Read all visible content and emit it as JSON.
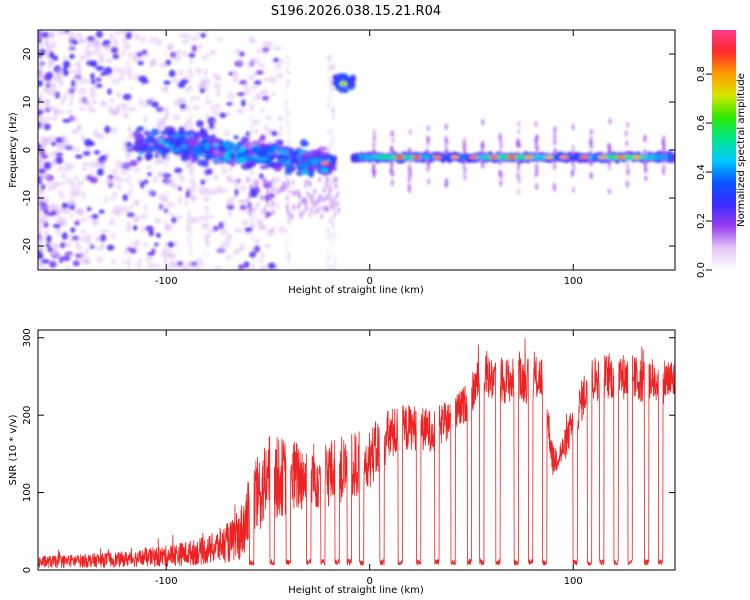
{
  "title": "S196.2026.038.15.21.R04",
  "chart_data": [
    {
      "type": "heatmap",
      "name": "spectrogram",
      "xlabel": "Height of straight line (km)",
      "ylabel": "Frequency (Hz)",
      "xlim": [
        -163,
        150
      ],
      "ylim": [
        -25,
        25
      ],
      "xticks": [
        -100,
        0,
        100
      ],
      "yticks": [
        -20,
        -10,
        0,
        10,
        20
      ],
      "xtick_labels": [
        "-100",
        "0",
        "100"
      ],
      "ytick_labels": [
        "-20",
        "-10",
        "0",
        "10",
        "20"
      ],
      "colorbar": {
        "label": "Normalized spectral amplitude",
        "range": [
          0,
          1
        ],
        "ticks": [
          0.0,
          0.2,
          0.4,
          0.6,
          0.8
        ],
        "tick_labels": [
          "0.0",
          "0.2",
          "0.4",
          "0.6",
          "0.8"
        ],
        "colormap": [
          "#ffffff",
          "#e3c6f5",
          "#9a3ff0",
          "#3a2bff",
          "#0a55ff",
          "#00c8ff",
          "#00e890",
          "#2ce800",
          "#d8e800",
          "#ff9c00",
          "#ff2a2a",
          "#ff3c90"
        ]
      },
      "features": [
        {
          "desc": "main carrier",
          "x_range": [
            -8,
            150
          ],
          "freq": -1.5,
          "intensity": 0.85
        },
        {
          "desc": "drifting carrier",
          "x_range": [
            -115,
            -18
          ],
          "freq_start": 1.5,
          "freq_end": -3,
          "intensity": 0.45
        },
        {
          "desc": "short burst",
          "x_range": [
            -17,
            -8
          ],
          "freq": 14,
          "intensity": 0.65
        }
      ]
    },
    {
      "type": "line",
      "name": "snr",
      "xlabel": "Height of straight line (km)",
      "ylabel": "SNR (10 * v/v)",
      "xlim": [
        -163,
        150
      ],
      "ylim": [
        0,
        310
      ],
      "xticks": [
        -100,
        0,
        100
      ],
      "yticks": [
        0,
        100,
        200,
        300
      ],
      "xtick_labels": [
        "-100",
        "0",
        "100"
      ],
      "ytick_labels": [
        "0",
        "100",
        "200",
        "300"
      ],
      "color": "#ee2222",
      "envelope": {
        "x": [
          -163,
          -140,
          -120,
          -100,
          -80,
          -65,
          -58,
          -50,
          -40,
          -30,
          -20,
          -10,
          0,
          10,
          20,
          30,
          40,
          47,
          55,
          65,
          78,
          85,
          90,
          95,
          100,
          108,
          115,
          125,
          135,
          150
        ],
        "base": [
          10,
          12,
          14,
          18,
          25,
          40,
          80,
          120,
          120,
          120,
          125,
          130,
          145,
          175,
          185,
          180,
          195,
          215,
          250,
          245,
          245,
          250,
          140,
          155,
          190,
          245,
          250,
          250,
          245,
          245
        ],
        "spread": [
          8,
          9,
          10,
          14,
          18,
          30,
          50,
          55,
          50,
          45,
          45,
          45,
          40,
          35,
          30,
          28,
          25,
          25,
          30,
          30,
          30,
          30,
          20,
          20,
          25,
          30,
          30,
          30,
          30,
          30
        ]
      },
      "dips_at": [
        -58,
        -48,
        -40,
        -30,
        -23,
        -16,
        -10,
        -4,
        6,
        15,
        24,
        33,
        41,
        49,
        55,
        63,
        72,
        79,
        86,
        101,
        108,
        114,
        121,
        128,
        136,
        143
      ],
      "dip_value": 6
    }
  ]
}
